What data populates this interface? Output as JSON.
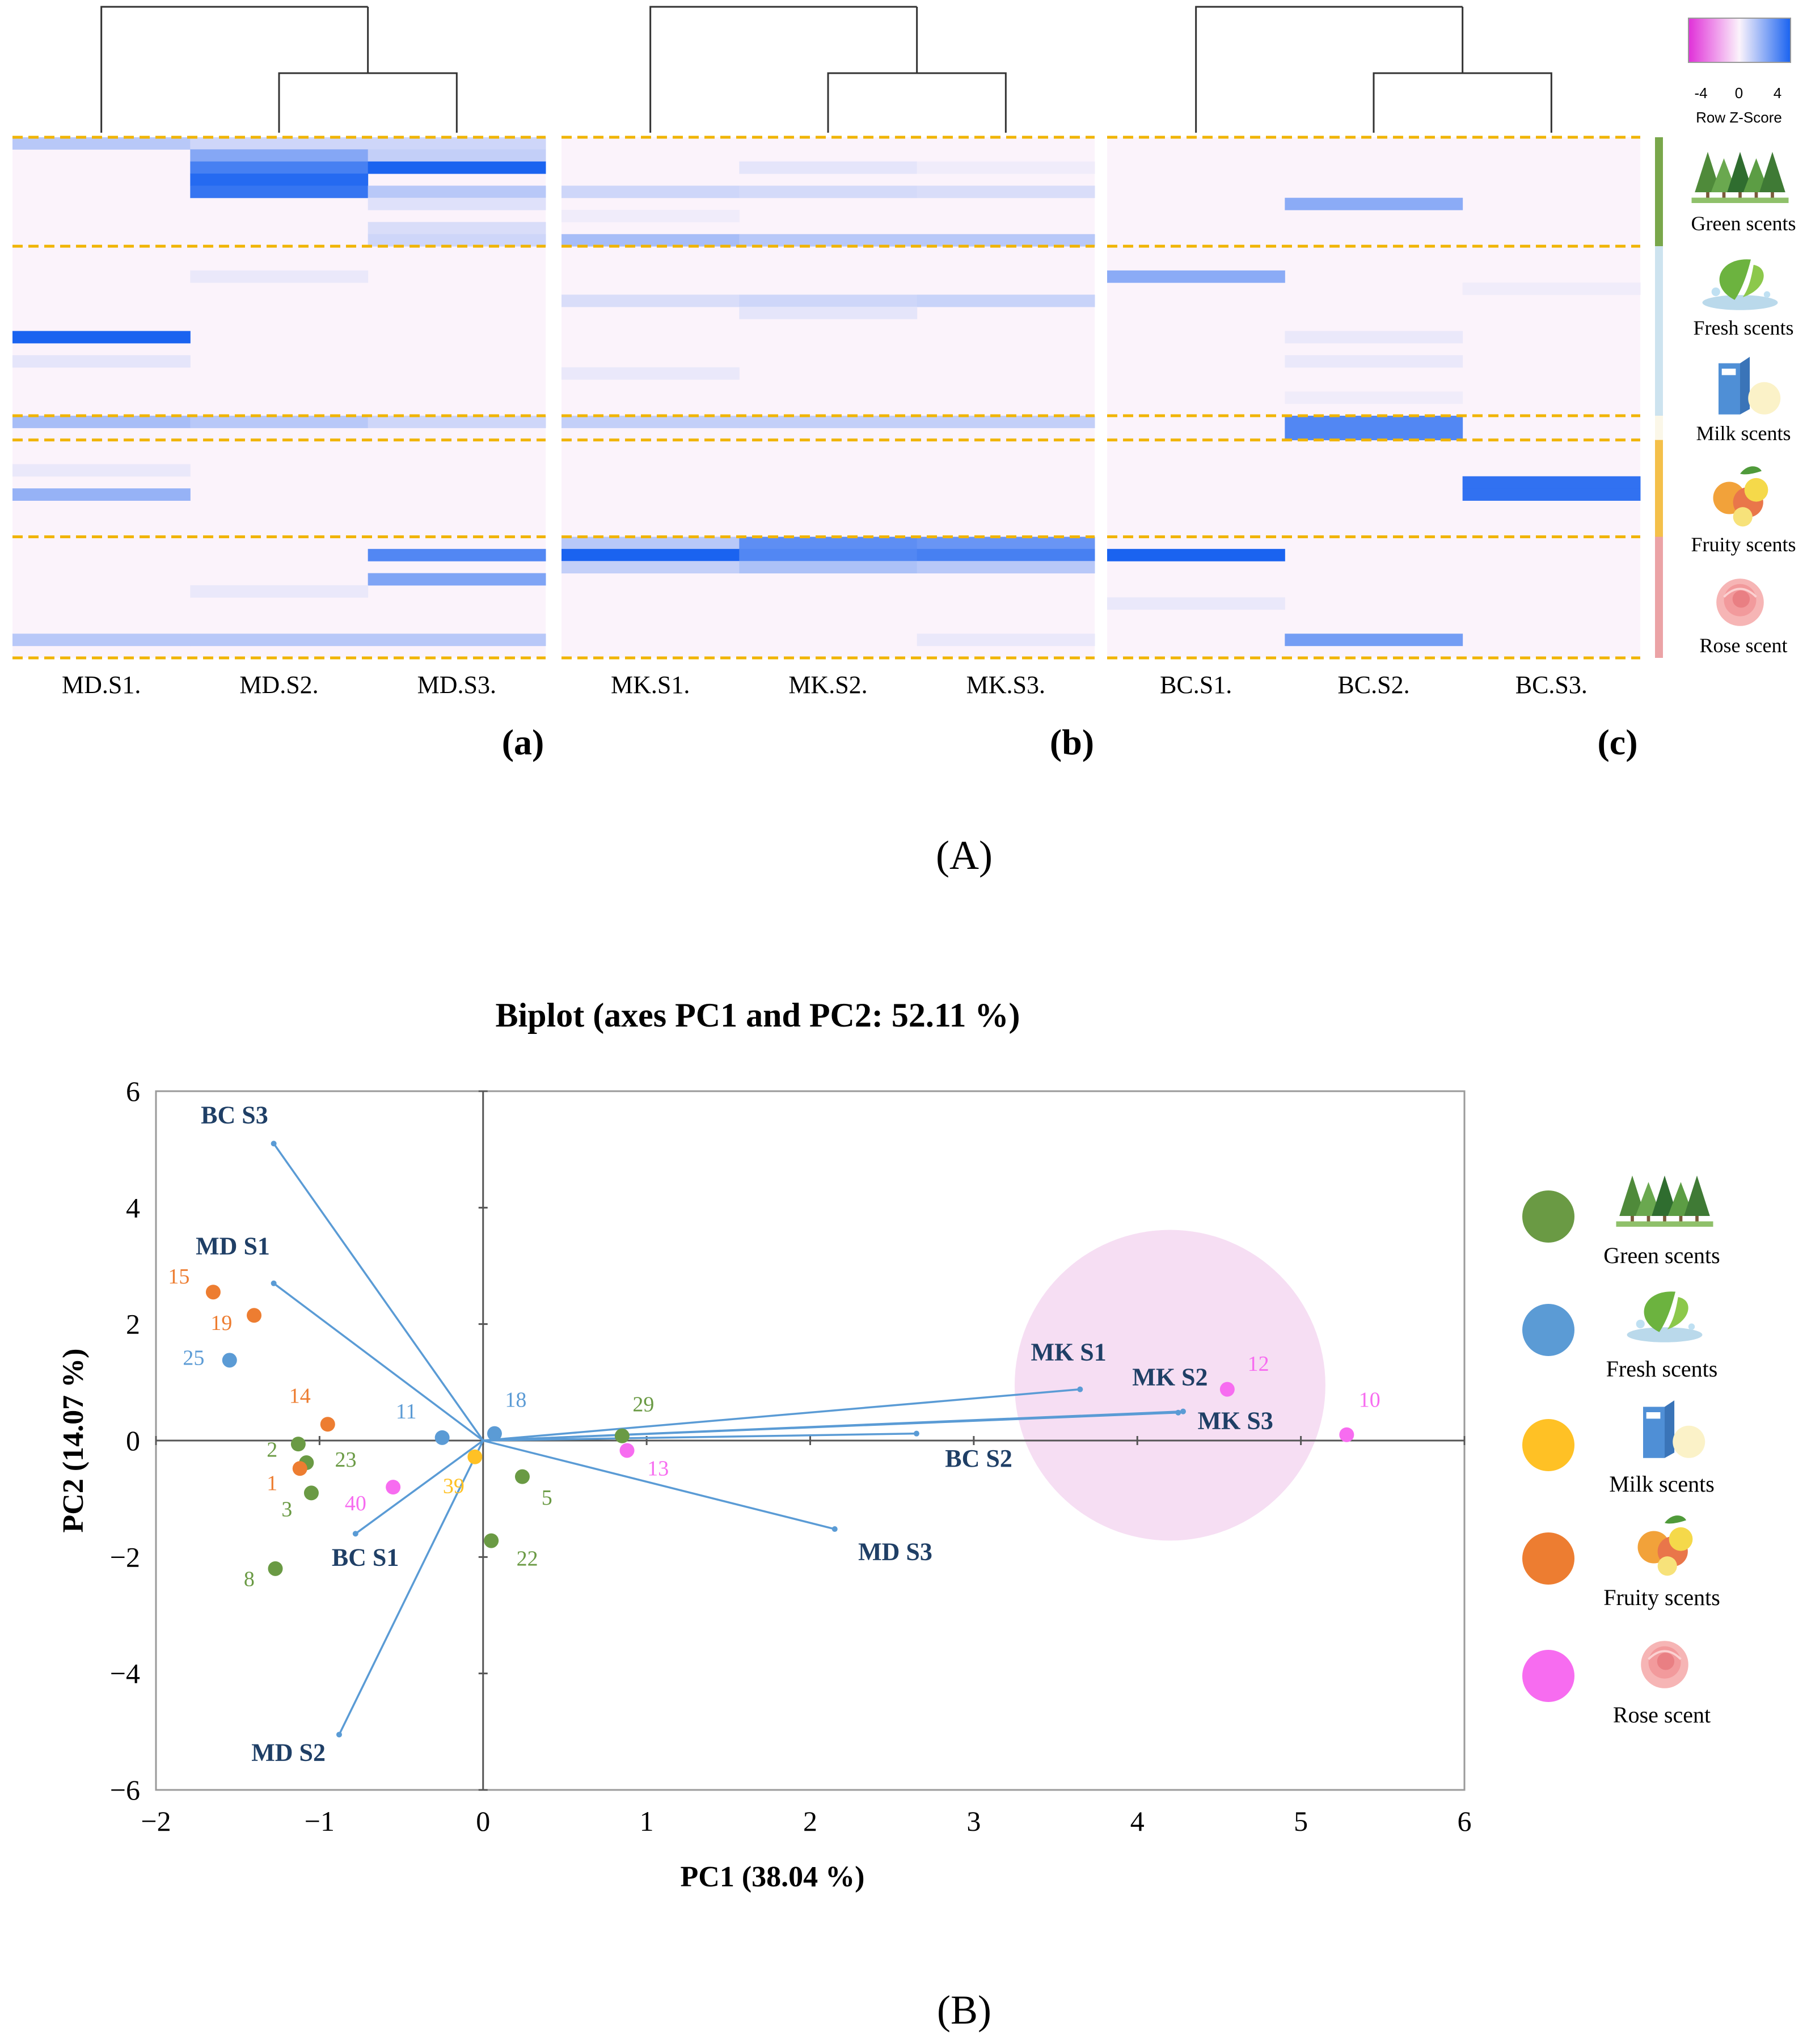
{
  "figure_labels": {
    "A": "(A)",
    "B": "(B)"
  },
  "colors": {
    "green": "#6a9a44",
    "blue": "#5b9bd5",
    "yellow": "#ffc125",
    "orange": "#ed7d31",
    "pink": "#f76cf0",
    "vector": "#5a9bd5",
    "vector_label": "#1f3f66",
    "dashed": "#f0b400"
  },
  "categories": [
    {
      "key": "green",
      "label": "Green scents",
      "icon": "forest-icon",
      "color": "#6a9a44",
      "bar_color": "#79a74b"
    },
    {
      "key": "fresh",
      "label": "Fresh scents",
      "icon": "leaf-splash-icon",
      "color": "#5b9bd5",
      "bar_color": "#cde3ef"
    },
    {
      "key": "milk",
      "label": "Milk scents",
      "icon": "milk-carton-icon",
      "color": "#ffc125",
      "bar_color": "#fbf7e8"
    },
    {
      "key": "fruity",
      "label": "Fruity scents",
      "icon": "citrus-fruits-icon",
      "color": "#ed7d31",
      "bar_color": "#f4c04a"
    },
    {
      "key": "rose",
      "label": "Rose scent",
      "icon": "rose-icon",
      "color": "#f76cf0",
      "bar_color": "#eba3a6"
    }
  ],
  "chart_data": [
    {
      "type": "heatmap",
      "title": "",
      "colorbar": {
        "min": -4,
        "max": 4,
        "ticks": [
          "-4",
          "0",
          "4"
        ],
        "label": "Row Z-Score",
        "low_color": "#e030d8",
        "mid_color": "#fbf3fb",
        "high_color": "#1a63f0"
      },
      "group_sizes": [
        9,
        14,
        2,
        8,
        10
      ],
      "panels": [
        {
          "id": "a",
          "panel_label": "(a)",
          "columns": [
            "MD.S1.",
            "MD.S2.",
            "MD.S3."
          ],
          "dendrogram": "S1 separate; S2 and S3 merge first",
          "cells": [
            [
              1.2,
              0.8,
              0.8
            ],
            [
              0,
              2.1,
              1.0
            ],
            [
              0,
              3.2,
              4.0
            ],
            [
              0,
              3.8,
              0
            ],
            [
              0,
              3.5,
              1.2
            ],
            [
              0,
              0,
              0.5
            ],
            [
              0,
              0,
              0
            ],
            [
              0,
              0,
              0.6
            ],
            [
              0,
              0,
              0.8
            ],
            [
              0,
              0,
              0
            ],
            [
              0,
              0,
              0
            ],
            [
              0,
              0.3,
              0
            ],
            [
              0,
              0,
              0
            ],
            [
              0,
              0,
              0
            ],
            [
              0,
              0,
              0
            ],
            [
              0,
              0,
              0
            ],
            [
              4.0,
              0,
              0
            ],
            [
              0,
              0,
              0
            ],
            [
              0.4,
              0,
              0
            ],
            [
              0,
              0,
              0
            ],
            [
              0,
              0,
              0
            ],
            [
              0,
              0,
              0
            ],
            [
              0,
              0,
              0
            ],
            [
              1.5,
              1.2,
              0.8
            ],
            [
              0,
              0,
              0
            ],
            [
              0,
              0,
              0
            ],
            [
              0,
              0,
              0
            ],
            [
              0.3,
              0,
              0
            ],
            [
              0,
              0,
              0
            ],
            [
              1.8,
              0,
              0
            ],
            [
              0,
              0,
              0
            ],
            [
              0,
              0,
              0
            ],
            [
              0,
              0,
              0
            ],
            [
              0,
              0,
              0
            ],
            [
              0,
              0,
              3.0
            ],
            [
              0,
              0,
              0
            ],
            [
              0,
              0,
              2.2
            ],
            [
              0,
              0.3,
              0
            ],
            [
              0,
              0,
              0
            ],
            [
              0,
              0,
              0
            ],
            [
              0,
              0,
              0
            ],
            [
              1.2,
              1.2,
              1.2
            ],
            [
              0,
              0,
              0
            ]
          ]
        },
        {
          "id": "b",
          "panel_label": "(b)",
          "columns": [
            "MK.S1.",
            "MK.S2.",
            "MK.S3."
          ],
          "dendrogram": "S1 separate; S2 and S3 merge first",
          "cells": [
            [
              0,
              0,
              0
            ],
            [
              0,
              0,
              0
            ],
            [
              0,
              0.4,
              0.2
            ],
            [
              0,
              0,
              0
            ],
            [
              0.8,
              0.7,
              0.6
            ],
            [
              0,
              0,
              0
            ],
            [
              0.2,
              0,
              0
            ],
            [
              0,
              0,
              0
            ],
            [
              1.5,
              1.2,
              1.2
            ],
            [
              0,
              0,
              0
            ],
            [
              0,
              0,
              0
            ],
            [
              0,
              0,
              0
            ],
            [
              0,
              0,
              0
            ],
            [
              0.6,
              0.8,
              0.9
            ],
            [
              0,
              0.4,
              0
            ],
            [
              0,
              0,
              0
            ],
            [
              0,
              0,
              0
            ],
            [
              0,
              0,
              0
            ],
            [
              0,
              0,
              0
            ],
            [
              0.3,
              0,
              0
            ],
            [
              0,
              0,
              0
            ],
            [
              0,
              0,
              0
            ],
            [
              0,
              0,
              0
            ],
            [
              1.0,
              1.0,
              1.0
            ],
            [
              0,
              0,
              0
            ],
            [
              0,
              0,
              0
            ],
            [
              0,
              0,
              0
            ],
            [
              0,
              0,
              0
            ],
            [
              0,
              0,
              0
            ],
            [
              0,
              0,
              0
            ],
            [
              0,
              0,
              0
            ],
            [
              0,
              0,
              0
            ],
            [
              0,
              0,
              0
            ],
            [
              1.2,
              2.8,
              2.6
            ],
            [
              4.0,
              3.0,
              3.2
            ],
            [
              1.0,
              1.4,
              1.2
            ],
            [
              0,
              0,
              0
            ],
            [
              0,
              0,
              0
            ],
            [
              0,
              0,
              0
            ],
            [
              0,
              0,
              0
            ],
            [
              0,
              0,
              0
            ],
            [
              0,
              0,
              0.3
            ],
            [
              0,
              0,
              0
            ]
          ]
        },
        {
          "id": "c",
          "panel_label": "(c)",
          "columns": [
            "BC.S1.",
            "BC.S2.",
            "BC.S3."
          ],
          "dendrogram": "S1 separate; S2 and S3 merge first",
          "cells": [
            [
              0,
              0,
              0
            ],
            [
              0,
              0,
              0
            ],
            [
              0,
              0,
              0
            ],
            [
              0,
              0,
              0
            ],
            [
              0,
              0,
              0
            ],
            [
              0,
              2.0,
              0
            ],
            [
              0,
              0,
              0
            ],
            [
              0,
              0,
              0
            ],
            [
              0,
              0,
              0
            ],
            [
              0,
              0,
              0
            ],
            [
              0,
              0,
              0
            ],
            [
              2.0,
              0,
              0
            ],
            [
              0,
              0,
              0.2
            ],
            [
              0,
              0,
              0
            ],
            [
              0,
              0,
              0
            ],
            [
              0,
              0,
              0
            ],
            [
              0,
              0.3,
              0
            ],
            [
              0,
              0,
              0
            ],
            [
              0,
              0.3,
              0
            ],
            [
              0,
              0,
              0
            ],
            [
              0,
              0,
              0
            ],
            [
              0,
              0.2,
              0
            ],
            [
              0,
              0,
              0
            ],
            [
              0,
              3.0,
              0
            ],
            [
              0,
              3.0,
              0
            ],
            [
              0,
              0,
              0
            ],
            [
              0,
              0,
              0
            ],
            [
              0,
              0,
              0
            ],
            [
              0,
              0,
              3.6
            ],
            [
              0,
              0,
              3.6
            ],
            [
              0,
              0,
              0
            ],
            [
              0,
              0,
              0
            ],
            [
              0,
              0,
              0
            ],
            [
              0,
              0,
              0
            ],
            [
              4.0,
              0,
              0
            ],
            [
              0,
              0,
              0
            ],
            [
              0,
              0,
              0
            ],
            [
              0,
              0,
              0
            ],
            [
              0.3,
              0,
              0
            ],
            [
              0,
              0,
              0
            ],
            [
              0,
              0,
              0
            ],
            [
              0,
              2.4,
              0
            ],
            [
              0,
              0,
              0
            ]
          ]
        }
      ]
    },
    {
      "type": "scatter",
      "title": "Biplot (axes PC1 and PC2: 52.11 %)",
      "xlabel": "PC1 (38.04 %)",
      "ylabel": "PC2 (14.07 %)",
      "xlim": [
        -2,
        6
      ],
      "ylim": [
        -6,
        6
      ],
      "xticks": [
        "−2",
        "−1",
        "0",
        "1",
        "2",
        "3",
        "4",
        "5",
        "6"
      ],
      "yticks": [
        "6",
        "4",
        "2",
        "0",
        "−2",
        "−4",
        "−6"
      ],
      "xtick_values": [
        -2,
        -1,
        0,
        1,
        2,
        3,
        4,
        5,
        6
      ],
      "ytick_values": [
        6,
        4,
        2,
        0,
        -2,
        -4,
        -6
      ],
      "highlight_circle": {
        "cx": 4.2,
        "cy": 0.95,
        "r": 0.95,
        "color": "#f6def3"
      },
      "vectors": [
        {
          "label": "BC S3",
          "x": -1.28,
          "y": 5.1,
          "lx": -1.52,
          "ly": 5.45
        },
        {
          "label": "MD S1",
          "x": -1.28,
          "y": 2.7,
          "lx": -1.53,
          "ly": 3.2
        },
        {
          "label": "BC S1",
          "x": -0.78,
          "y": -1.6,
          "lx": -0.72,
          "ly": -2.15
        },
        {
          "label": "MD S2",
          "x": -0.88,
          "y": -5.05,
          "lx": -1.19,
          "ly": -5.5
        },
        {
          "label": "MK S1",
          "x": 3.65,
          "y": 0.88,
          "lx": 3.58,
          "ly": 1.38
        },
        {
          "label": "MK S2",
          "x": 4.25,
          "y": 0.48,
          "lx": 4.2,
          "ly": 0.95
        },
        {
          "label": "MK S3",
          "x": 4.28,
          "y": 0.5,
          "lx": 4.6,
          "ly": 0.2
        },
        {
          "label": "BC S2",
          "x": 2.65,
          "y": 0.12,
          "lx": 3.03,
          "ly": -0.45
        },
        {
          "label": "MD S3",
          "x": 2.15,
          "y": -1.52,
          "lx": 2.52,
          "ly": -2.05
        }
      ],
      "points": [
        {
          "label": "15",
          "category": "fruity",
          "x": -1.65,
          "y": 2.55,
          "lx": -1.86,
          "ly": 2.7
        },
        {
          "label": "19",
          "category": "fruity",
          "x": -1.4,
          "y": 2.15,
          "lx": -1.6,
          "ly": 1.9
        },
        {
          "label": "25",
          "category": "fresh",
          "x": -1.55,
          "y": 1.38,
          "lx": -1.77,
          "ly": 1.3
        },
        {
          "label": "14",
          "category": "fruity",
          "x": -0.95,
          "y": 0.28,
          "lx": -1.12,
          "ly": 0.65
        },
        {
          "label": "2",
          "category": "green",
          "x": -1.13,
          "y": -0.06,
          "lx": -1.29,
          "ly": -0.28
        },
        {
          "label": "23",
          "category": "green",
          "x": -1.08,
          "y": -0.38,
          "lx": -0.84,
          "ly": -0.45
        },
        {
          "label": "1",
          "category": "fruity",
          "x": -1.12,
          "y": -0.48,
          "lx": -1.29,
          "ly": -0.85
        },
        {
          "label": "3",
          "category": "green",
          "x": -1.05,
          "y": -0.9,
          "lx": -1.2,
          "ly": -1.3
        },
        {
          "label": "40",
          "category": "rose",
          "x": -0.55,
          "y": -0.8,
          "lx": -0.78,
          "ly": -1.2
        },
        {
          "label": "8",
          "category": "green",
          "x": -1.27,
          "y": -2.2,
          "lx": -1.43,
          "ly": -2.5
        },
        {
          "label": "11",
          "category": "fresh",
          "x": -0.25,
          "y": 0.05,
          "lx": -0.47,
          "ly": 0.38
        },
        {
          "label": "18",
          "category": "fresh",
          "x": 0.07,
          "y": 0.12,
          "lx": 0.2,
          "ly": 0.58
        },
        {
          "label": "39",
          "category": "milk",
          "x": -0.05,
          "y": -0.28,
          "lx": -0.18,
          "ly": -0.9
        },
        {
          "label": "29",
          "category": "green",
          "x": 0.85,
          "y": 0.08,
          "lx": 0.98,
          "ly": 0.5
        },
        {
          "label": "13",
          "category": "rose",
          "x": 0.88,
          "y": -0.17,
          "lx": 1.07,
          "ly": -0.6
        },
        {
          "label": "5",
          "category": "green",
          "x": 0.24,
          "y": -0.62,
          "lx": 0.39,
          "ly": -1.1
        },
        {
          "label": "22",
          "category": "green",
          "x": 0.05,
          "y": -1.72,
          "lx": 0.27,
          "ly": -2.15
        },
        {
          "label": "12",
          "category": "rose",
          "x": 4.55,
          "y": 0.88,
          "lx": 4.74,
          "ly": 1.2
        },
        {
          "label": "10",
          "category": "rose",
          "x": 5.28,
          "y": 0.1,
          "lx": 5.42,
          "ly": 0.58
        }
      ]
    }
  ]
}
